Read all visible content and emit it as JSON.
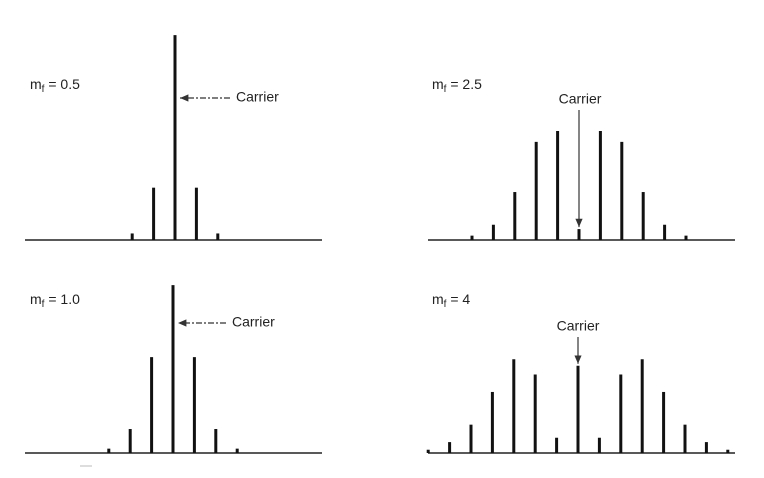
{
  "chart_data": [
    {
      "type": "stem",
      "title": "m",
      "title_sub": "f",
      "title_rest": " = 0.5",
      "annotation": "Carrier",
      "ylim": [
        0,
        1
      ],
      "values": [
        0.03,
        0.24,
        0.94,
        0.24,
        0.03
      ]
    },
    {
      "type": "stem",
      "title": "m",
      "title_sub": "f",
      "title_rest": " = 2.5",
      "annotation": "Carrier",
      "ylim": [
        0,
        1
      ],
      "values": [
        0.02,
        0.07,
        0.22,
        0.45,
        0.5,
        0.05,
        0.5,
        0.45,
        0.22,
        0.07,
        0.02
      ]
    },
    {
      "type": "stem",
      "title": "m",
      "title_sub": "f",
      "title_rest": " = 1.0",
      "annotation": "Carrier",
      "ylim": [
        0,
        1
      ],
      "values": [
        0.02,
        0.11,
        0.44,
        0.77,
        0.44,
        0.11,
        0.02
      ]
    },
    {
      "type": "stem",
      "title": "m",
      "title_sub": "f",
      "title_rest": " = 4",
      "annotation": "Carrier",
      "ylim": [
        0,
        1
      ],
      "values": [
        0.015,
        0.05,
        0.13,
        0.28,
        0.43,
        0.36,
        0.07,
        0.4,
        0.07,
        0.36,
        0.43,
        0.28,
        0.13,
        0.05,
        0.015
      ]
    }
  ]
}
